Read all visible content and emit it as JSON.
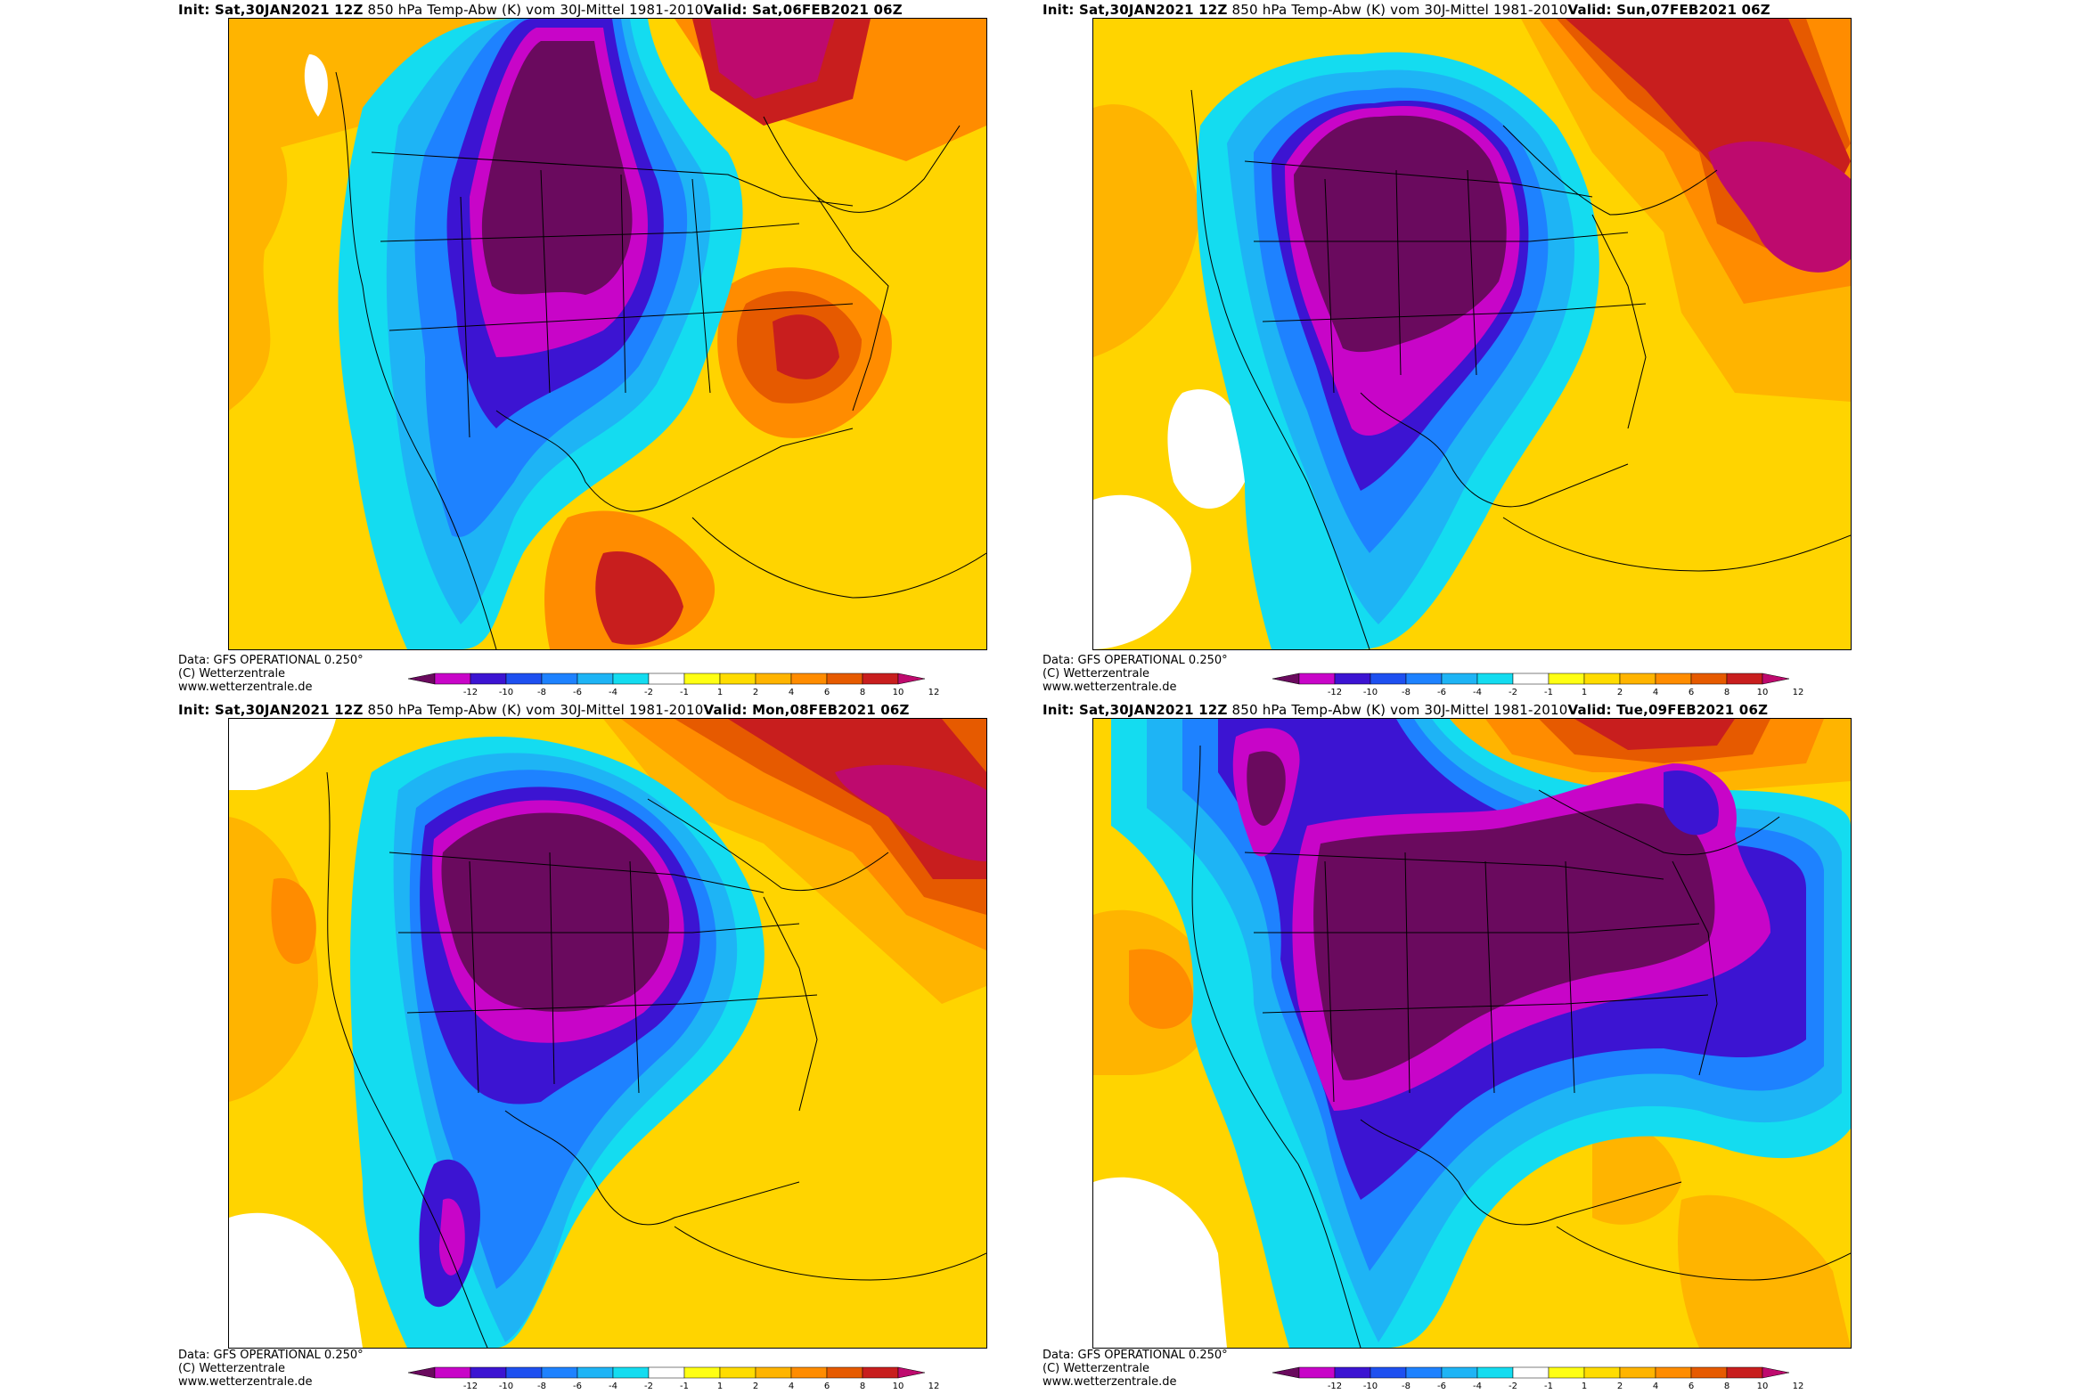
{
  "colorbar_levels": [
    "-12",
    "-10",
    "-8",
    "-6",
    "-4",
    "-2",
    "-1",
    "1",
    "2",
    "4",
    "6",
    "8",
    "10",
    "12"
  ],
  "colorbar_colors": [
    "#6a0a5e",
    "#c805c8",
    "#3c14d2",
    "#1e50f0",
    "#1e82ff",
    "#1eb4f5",
    "#14dcf0",
    "#ffffff",
    "#ffff14",
    "#ffdc00",
    "#ffb400",
    "#ff8c00",
    "#e65a00",
    "#c81e1e",
    "#be0a6e"
  ],
  "panels": [
    {
      "init": "Init: Sat,30JAN2021  12Z",
      "title": "850  hPa  Temp-Abw  (K)  vom  30J-Mittel  1981-2010",
      "valid": "Valid:  Sat,06FEB2021  06Z",
      "footer": [
        "Data:  GFS  OPERATIONAL  0.250°",
        "(C)  Wetterzentrale",
        "www.wetterzentrale.de"
      ]
    },
    {
      "init": "Init: Sat,30JAN2021  12Z",
      "title": "850  hPa  Temp-Abw  (K)  vom  30J-Mittel  1981-2010",
      "valid": "Valid:  Sun,07FEB2021  06Z",
      "footer": [
        "Data:  GFS  OPERATIONAL  0.250°",
        "(C)  Wetterzentrale",
        "www.wetterzentrale.de"
      ]
    },
    {
      "init": "Init: Sat,30JAN2021  12Z",
      "title": "850  hPa  Temp-Abw  (K)  vom  30J-Mittel  1981-2010",
      "valid": "Valid:  Mon,08FEB2021  06Z",
      "footer": [
        "Data:  GFS  OPERATIONAL  0.250°",
        "(C)  Wetterzentrale",
        "www.wetterzentrale.de"
      ]
    },
    {
      "init": "Init: Sat,30JAN2021  12Z",
      "title": "850  hPa  Temp-Abw  (K)  vom  30J-Mittel  1981-2010",
      "valid": "Valid:  Tue,09FEB2021  06Z",
      "footer": [
        "Data:  GFS  OPERATIONAL  0.250°",
        "(C)  Wetterzentrale",
        "www.wetterzentrale.de"
      ]
    }
  ]
}
